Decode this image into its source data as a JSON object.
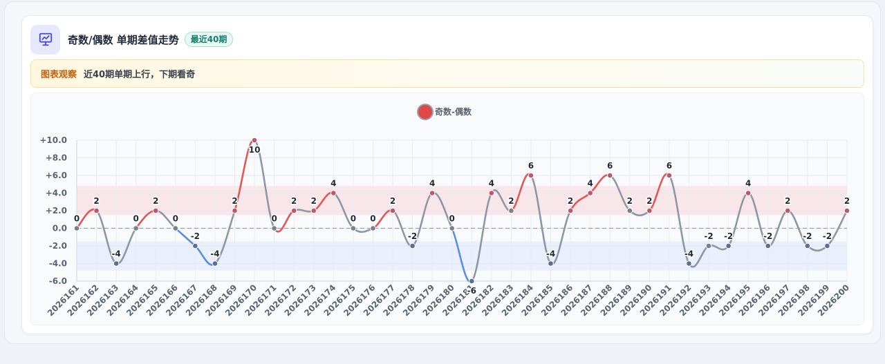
{
  "header": {
    "title": "奇数/偶数 单期差值走势",
    "badge": "最近40期"
  },
  "insight": {
    "label": "图表观察",
    "text": "近40期单期上行，下期看奇"
  },
  "colors": {
    "positive": "#e05757",
    "negative": "#5a8fde",
    "neutral": "#8e97a6",
    "legend_fill": "#e04848",
    "legend_stroke": "#9aa2ae",
    "band_positive": "#f9dfe3",
    "band_negative": "#e4ebfb"
  },
  "chart_data": {
    "type": "line",
    "legend": [
      "奇数-偶数"
    ],
    "legend_position": "top-center",
    "x": [
      "2026161",
      "2026162",
      "2026163",
      "2026164",
      "2026165",
      "2026166",
      "2026167",
      "2026168",
      "2026169",
      "2026170",
      "2026171",
      "2026172",
      "2026173",
      "2026174",
      "2026175",
      "2026176",
      "2026177",
      "2026178",
      "2026179",
      "2026180",
      "2026181",
      "2026182",
      "2026183",
      "2026184",
      "2026185",
      "2026186",
      "2026187",
      "2026188",
      "2026189",
      "2026190",
      "2026191",
      "2026192",
      "2026193",
      "2026194",
      "2026195",
      "2026196",
      "2026197",
      "2026198",
      "2026199",
      "2026200"
    ],
    "series": [
      {
        "name": "奇数-偶数",
        "values": [
          0,
          2,
          -4,
          0,
          2,
          0,
          -2,
          -4,
          2,
          10,
          0,
          2,
          2,
          4,
          0,
          0,
          2,
          -2,
          4,
          0,
          -6,
          4,
          2,
          6,
          -4,
          2,
          4,
          6,
          2,
          2,
          6,
          -4,
          -2,
          -2,
          4,
          -2,
          2,
          -2,
          -2,
          2
        ]
      }
    ],
    "ylim": [
      -6,
      10
    ],
    "yticks": [
      -6,
      -4,
      -2,
      0,
      2,
      4,
      6,
      8,
      10
    ],
    "ytick_labels": [
      "-6.0",
      "-4.0",
      "-2.0",
      "0.0",
      "+2.0",
      "+4.0",
      "+6.0",
      "+8.0",
      "+10.0"
    ],
    "bands": [
      {
        "from": 1.5,
        "to": 4.8,
        "kind": "positive"
      },
      {
        "from": -4.8,
        "to": -1.5,
        "kind": "negative"
      }
    ],
    "zero_line": true,
    "grid": true
  }
}
